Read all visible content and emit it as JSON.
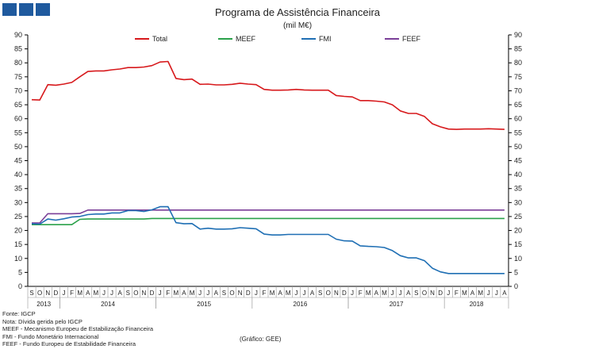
{
  "header": {
    "logo_icon": "igcp-logo-icon"
  },
  "chart_data": {
    "type": "line",
    "title": "Programa de Assistência Financeira",
    "subtitle": "(mil M€)",
    "ylim": [
      0,
      90
    ],
    "yticks": [
      0,
      5,
      10,
      15,
      20,
      25,
      30,
      35,
      40,
      45,
      50,
      55,
      60,
      65,
      70,
      75,
      80,
      85,
      90
    ],
    "x_month_labels": [
      "S",
      "O",
      "N",
      "D",
      "J",
      "F",
      "M",
      "A",
      "M",
      "J",
      "J",
      "A",
      "S",
      "O",
      "N",
      "D",
      "J",
      "F",
      "M",
      "A",
      "M",
      "J",
      "J",
      "A",
      "S",
      "O",
      "N",
      "D",
      "J",
      "F",
      "M",
      "A",
      "M",
      "J",
      "J",
      "A",
      "S",
      "O",
      "N",
      "D",
      "J",
      "F",
      "M",
      "A",
      "M",
      "J",
      "J",
      "A",
      "S",
      "O",
      "N",
      "D",
      "J",
      "F",
      "M",
      "A",
      "M",
      "J",
      "J",
      "A"
    ],
    "years": [
      {
        "label": "2013",
        "start": 0,
        "count": 4
      },
      {
        "label": "2014",
        "start": 4,
        "count": 12
      },
      {
        "label": "2015",
        "start": 16,
        "count": 12
      },
      {
        "label": "2016",
        "start": 28,
        "count": 12
      },
      {
        "label": "2017",
        "start": 40,
        "count": 12
      },
      {
        "label": "2018",
        "start": 52,
        "count": 8
      }
    ],
    "series": [
      {
        "name": "Total",
        "color": "#d7191c",
        "values": [
          66.8,
          66.7,
          72.2,
          72.0,
          72.4,
          73.0,
          75.0,
          76.9,
          77.1,
          77.1,
          77.5,
          77.8,
          78.3,
          78.3,
          78.5,
          79.0,
          80.3,
          80.5,
          74.4,
          74.0,
          74.2,
          72.3,
          72.4,
          72.1,
          72.1,
          72.3,
          72.7,
          72.4,
          72.2,
          70.5,
          70.2,
          70.2,
          70.3,
          70.5,
          70.3,
          70.2,
          70.2,
          70.2,
          68.3,
          68.0,
          67.8,
          66.5,
          66.5,
          66.3,
          66.0,
          65.0,
          62.8,
          61.9,
          61.9,
          60.8,
          58.2,
          57.1,
          56.3,
          56.2,
          56.3,
          56.3,
          56.3,
          56.4,
          56.3,
          56.2
        ]
      },
      {
        "name": "MEEF",
        "color": "#2aa14a",
        "values": [
          22.1,
          22.1,
          22.1,
          22.1,
          22.1,
          22.1,
          24.0,
          24.1,
          24.1,
          24.1,
          24.1,
          24.1,
          24.1,
          24.1,
          24.1,
          24.3,
          24.3,
          24.3,
          24.3,
          24.3,
          24.3,
          24.3,
          24.3,
          24.3,
          24.3,
          24.3,
          24.3,
          24.3,
          24.3,
          24.3,
          24.3,
          24.3,
          24.3,
          24.3,
          24.3,
          24.3,
          24.3,
          24.3,
          24.3,
          24.3,
          24.3,
          24.3,
          24.3,
          24.3,
          24.3,
          24.3,
          24.3,
          24.3,
          24.3,
          24.3,
          24.3,
          24.3,
          24.3,
          24.3,
          24.3,
          24.3,
          24.3,
          24.3,
          24.3,
          24.3
        ]
      },
      {
        "name": "FMI",
        "color": "#1f6fb4",
        "values": [
          22.4,
          22.3,
          24.1,
          23.7,
          24.2,
          24.8,
          25.0,
          25.7,
          25.9,
          25.9,
          26.3,
          26.3,
          27.1,
          27.1,
          26.8,
          27.4,
          28.5,
          28.5,
          22.8,
          22.4,
          22.5,
          20.5,
          20.8,
          20.5,
          20.5,
          20.6,
          21.0,
          20.8,
          20.6,
          18.7,
          18.4,
          18.4,
          18.6,
          18.6,
          18.6,
          18.6,
          18.6,
          18.6,
          16.9,
          16.3,
          16.2,
          14.5,
          14.3,
          14.2,
          13.9,
          12.8,
          11.0,
          10.2,
          10.2,
          9.2,
          6.5,
          5.2,
          4.6,
          4.6,
          4.6,
          4.6,
          4.6,
          4.6,
          4.6,
          4.6
        ]
      },
      {
        "name": "FEEF",
        "color": "#7b3f98",
        "values": [
          22.7,
          22.7,
          26.0,
          26.0,
          26.0,
          26.0,
          26.1,
          27.3,
          27.3,
          27.3,
          27.3,
          27.3,
          27.3,
          27.3,
          27.3,
          27.3,
          27.3,
          27.3,
          27.3,
          27.3,
          27.3,
          27.3,
          27.3,
          27.3,
          27.3,
          27.3,
          27.3,
          27.3,
          27.3,
          27.3,
          27.3,
          27.3,
          27.3,
          27.3,
          27.3,
          27.3,
          27.3,
          27.3,
          27.3,
          27.3,
          27.3,
          27.3,
          27.3,
          27.3,
          27.3,
          27.3,
          27.3,
          27.3,
          27.3,
          27.3,
          27.3,
          27.3,
          27.3,
          27.3,
          27.3,
          27.3,
          27.3,
          27.3,
          27.3,
          27.3
        ]
      }
    ]
  },
  "notes": [
    "Fonte: IGCP",
    "Nota: Dívida gerida pelo IGCP",
    "MEEF - Mecanismo Europeu de Estabilização Financeira",
    "FMI - Fundo Monetário Internacional",
    "FEEF - Fundo Europeu de Estabilidade Financeira"
  ],
  "credit": "(Gráfico: GEE)"
}
